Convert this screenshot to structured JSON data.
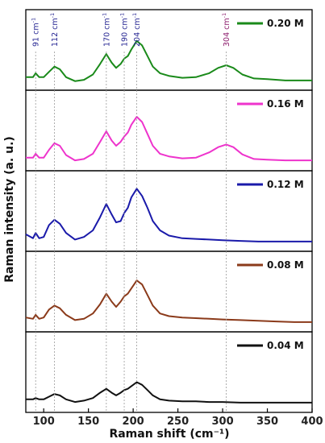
{
  "chart_data": {
    "type": "line",
    "xlabel": "Raman shift (cm⁻¹)",
    "ylabel": "Raman intensity (a. u.)",
    "xlim": [
      80,
      400
    ],
    "x_ticks": [
      100,
      150,
      200,
      250,
      300,
      350,
      400
    ],
    "grid": false,
    "legend_placement": "top-right of each panel",
    "annotations": [
      {
        "label": "91 cm",
        "unit_sup": "-1",
        "x": 91,
        "color": "#1f1f8f"
      },
      {
        "label": "112 cm",
        "unit_sup": "-1",
        "x": 112,
        "color": "#1f1f8f"
      },
      {
        "label": "170 cm",
        "unit_sup": "-1",
        "x": 170,
        "color": "#1f1f8f"
      },
      {
        "label": "190 cm",
        "unit_sup": "-1",
        "x": 190,
        "color": "#1f1f8f"
      },
      {
        "label": "204 cm",
        "unit_sup": "-1",
        "x": 204,
        "color": "#1f1f8f"
      },
      {
        "label": "304 cm",
        "unit_sup": "-1",
        "x": 304,
        "color": "#8b1a6b"
      }
    ],
    "series": [
      {
        "name": "0.20 M",
        "color": "#1a8a1a",
        "points": [
          [
            80,
            0.1
          ],
          [
            88,
            0.1
          ],
          [
            91,
            0.16
          ],
          [
            95,
            0.1
          ],
          [
            100,
            0.1
          ],
          [
            106,
            0.18
          ],
          [
            112,
            0.26
          ],
          [
            118,
            0.22
          ],
          [
            125,
            0.1
          ],
          [
            135,
            0.04
          ],
          [
            145,
            0.06
          ],
          [
            155,
            0.14
          ],
          [
            163,
            0.3
          ],
          [
            170,
            0.45
          ],
          [
            176,
            0.32
          ],
          [
            181,
            0.24
          ],
          [
            186,
            0.3
          ],
          [
            190,
            0.38
          ],
          [
            194,
            0.42
          ],
          [
            198,
            0.52
          ],
          [
            204,
            0.65
          ],
          [
            210,
            0.58
          ],
          [
            216,
            0.42
          ],
          [
            222,
            0.26
          ],
          [
            230,
            0.16
          ],
          [
            240,
            0.12
          ],
          [
            255,
            0.09
          ],
          [
            270,
            0.1
          ],
          [
            285,
            0.16
          ],
          [
            295,
            0.24
          ],
          [
            304,
            0.28
          ],
          [
            312,
            0.24
          ],
          [
            322,
            0.14
          ],
          [
            335,
            0.08
          ],
          [
            350,
            0.07
          ],
          [
            370,
            0.05
          ],
          [
            390,
            0.05
          ],
          [
            400,
            0.05
          ]
        ]
      },
      {
        "name": "0.16 M",
        "color": "#ee33cc",
        "points": [
          [
            80,
            0.1
          ],
          [
            88,
            0.1
          ],
          [
            91,
            0.16
          ],
          [
            95,
            0.1
          ],
          [
            100,
            0.1
          ],
          [
            106,
            0.22
          ],
          [
            112,
            0.32
          ],
          [
            118,
            0.28
          ],
          [
            125,
            0.14
          ],
          [
            135,
            0.06
          ],
          [
            145,
            0.08
          ],
          [
            155,
            0.16
          ],
          [
            163,
            0.34
          ],
          [
            170,
            0.5
          ],
          [
            176,
            0.36
          ],
          [
            181,
            0.28
          ],
          [
            186,
            0.34
          ],
          [
            190,
            0.42
          ],
          [
            194,
            0.48
          ],
          [
            198,
            0.6
          ],
          [
            204,
            0.72
          ],
          [
            210,
            0.64
          ],
          [
            216,
            0.46
          ],
          [
            222,
            0.28
          ],
          [
            230,
            0.16
          ],
          [
            240,
            0.12
          ],
          [
            255,
            0.09
          ],
          [
            270,
            0.1
          ],
          [
            285,
            0.18
          ],
          [
            295,
            0.26
          ],
          [
            304,
            0.3
          ],
          [
            312,
            0.26
          ],
          [
            322,
            0.15
          ],
          [
            335,
            0.08
          ],
          [
            350,
            0.07
          ],
          [
            370,
            0.06
          ],
          [
            390,
            0.06
          ],
          [
            400,
            0.06
          ]
        ]
      },
      {
        "name": "0.12 M",
        "color": "#1a1aaa",
        "points": [
          [
            80,
            0.16
          ],
          [
            88,
            0.1
          ],
          [
            91,
            0.18
          ],
          [
            95,
            0.1
          ],
          [
            100,
            0.12
          ],
          [
            106,
            0.3
          ],
          [
            112,
            0.38
          ],
          [
            118,
            0.32
          ],
          [
            125,
            0.18
          ],
          [
            135,
            0.08
          ],
          [
            145,
            0.12
          ],
          [
            155,
            0.22
          ],
          [
            163,
            0.42
          ],
          [
            170,
            0.62
          ],
          [
            176,
            0.46
          ],
          [
            181,
            0.34
          ],
          [
            186,
            0.36
          ],
          [
            190,
            0.48
          ],
          [
            194,
            0.56
          ],
          [
            198,
            0.72
          ],
          [
            204,
            0.85
          ],
          [
            210,
            0.74
          ],
          [
            216,
            0.56
          ],
          [
            222,
            0.36
          ],
          [
            230,
            0.22
          ],
          [
            240,
            0.14
          ],
          [
            255,
            0.1
          ],
          [
            270,
            0.09
          ],
          [
            285,
            0.08
          ],
          [
            300,
            0.07
          ],
          [
            320,
            0.06
          ],
          [
            340,
            0.05
          ],
          [
            360,
            0.05
          ],
          [
            380,
            0.05
          ],
          [
            400,
            0.05
          ]
        ]
      },
      {
        "name": "0.08 M",
        "color": "#8b3a1a",
        "points": [
          [
            80,
            0.12
          ],
          [
            88,
            0.1
          ],
          [
            91,
            0.16
          ],
          [
            95,
            0.1
          ],
          [
            100,
            0.12
          ],
          [
            106,
            0.24
          ],
          [
            112,
            0.3
          ],
          [
            118,
            0.26
          ],
          [
            125,
            0.16
          ],
          [
            135,
            0.08
          ],
          [
            145,
            0.1
          ],
          [
            155,
            0.18
          ],
          [
            163,
            0.32
          ],
          [
            170,
            0.48
          ],
          [
            176,
            0.36
          ],
          [
            181,
            0.28
          ],
          [
            186,
            0.36
          ],
          [
            190,
            0.44
          ],
          [
            194,
            0.48
          ],
          [
            198,
            0.56
          ],
          [
            204,
            0.68
          ],
          [
            210,
            0.62
          ],
          [
            216,
            0.46
          ],
          [
            222,
            0.3
          ],
          [
            230,
            0.18
          ],
          [
            240,
            0.14
          ],
          [
            255,
            0.12
          ],
          [
            270,
            0.11
          ],
          [
            285,
            0.1
          ],
          [
            300,
            0.09
          ],
          [
            320,
            0.08
          ],
          [
            340,
            0.07
          ],
          [
            360,
            0.06
          ],
          [
            380,
            0.05
          ],
          [
            400,
            0.05
          ]
        ]
      },
      {
        "name": "0.04 M",
        "color": "#111111",
        "points": [
          [
            80,
            0.1
          ],
          [
            88,
            0.1
          ],
          [
            91,
            0.12
          ],
          [
            95,
            0.1
          ],
          [
            100,
            0.1
          ],
          [
            106,
            0.14
          ],
          [
            112,
            0.18
          ],
          [
            118,
            0.16
          ],
          [
            125,
            0.1
          ],
          [
            135,
            0.06
          ],
          [
            145,
            0.08
          ],
          [
            155,
            0.12
          ],
          [
            163,
            0.2
          ],
          [
            170,
            0.26
          ],
          [
            176,
            0.2
          ],
          [
            181,
            0.16
          ],
          [
            186,
            0.2
          ],
          [
            190,
            0.24
          ],
          [
            194,
            0.26
          ],
          [
            198,
            0.3
          ],
          [
            204,
            0.36
          ],
          [
            210,
            0.32
          ],
          [
            216,
            0.24
          ],
          [
            222,
            0.16
          ],
          [
            230,
            0.1
          ],
          [
            240,
            0.08
          ],
          [
            255,
            0.07
          ],
          [
            270,
            0.07
          ],
          [
            285,
            0.06
          ],
          [
            300,
            0.06
          ],
          [
            320,
            0.05
          ],
          [
            340,
            0.05
          ],
          [
            360,
            0.05
          ],
          [
            380,
            0.05
          ],
          [
            400,
            0.05
          ]
        ]
      }
    ]
  }
}
